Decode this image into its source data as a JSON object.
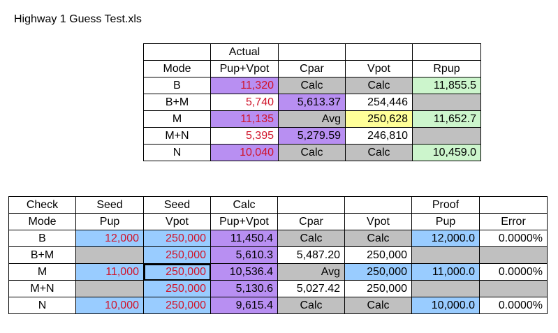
{
  "doc_title": "Highway 1 Guess Test.xls",
  "table1": {
    "actual_label": "Actual",
    "headers": [
      "Mode",
      "Pup+Vpot",
      "Cpar",
      "Vpot",
      "Rpup"
    ],
    "rows": [
      {
        "mode": "B",
        "pupvpot": "11,320",
        "cpar": "Calc",
        "vpot": "Calc",
        "rpup": "11,855.5"
      },
      {
        "mode": "B+M",
        "pupvpot": "5,740",
        "cpar": "5,613.37",
        "vpot": "254,446",
        "rpup": ""
      },
      {
        "mode": "M",
        "pupvpot": "11,135",
        "cpar": "Avg",
        "vpot": "250,628",
        "rpup": "11,652.7"
      },
      {
        "mode": "M+N",
        "pupvpot": "5,395",
        "cpar": "5,279.59",
        "vpot": "246,810",
        "rpup": ""
      },
      {
        "mode": "N",
        "pupvpot": "10,040",
        "cpar": "Calc",
        "vpot": "Calc",
        "rpup": "10,459.0"
      }
    ]
  },
  "table2": {
    "top_labels": [
      "Check",
      "Seed",
      "Seed",
      "Calc",
      "Proof"
    ],
    "headers": [
      "Mode",
      "Pup",
      "Vpot",
      "Pup+Vpot",
      "Cpar",
      "Vpot",
      "Pup",
      "Error"
    ],
    "rows": [
      {
        "mode": "B",
        "pup": "12,000",
        "seedvpot": "250,000",
        "pupvpot": "11,450.4",
        "cpar": "Calc",
        "vpot": "Calc",
        "proofpup": "12,000.0",
        "error": "0.0000%"
      },
      {
        "mode": "B+M",
        "pup": "",
        "seedvpot": "250,000",
        "pupvpot": "5,610.3",
        "cpar": "5,487.20",
        "vpot": "250,000",
        "proofpup": "",
        "error": ""
      },
      {
        "mode": "M",
        "pup": "11,000",
        "seedvpot": "250,000",
        "pupvpot": "10,536.4",
        "cpar": "Avg",
        "vpot": "250,000",
        "proofpup": "11,000.0",
        "error": "0.0000%"
      },
      {
        "mode": "M+N",
        "pup": "",
        "seedvpot": "250,000",
        "pupvpot": "5,130.6",
        "cpar": "5,027.42",
        "vpot": "250,000",
        "proofpup": "",
        "error": ""
      },
      {
        "mode": "N",
        "pup": "10,000",
        "seedvpot": "250,000",
        "pupvpot": "9,615.4",
        "cpar": "Calc",
        "vpot": "Calc",
        "proofpup": "10,000.0",
        "error": "0.0000%"
      }
    ]
  }
}
